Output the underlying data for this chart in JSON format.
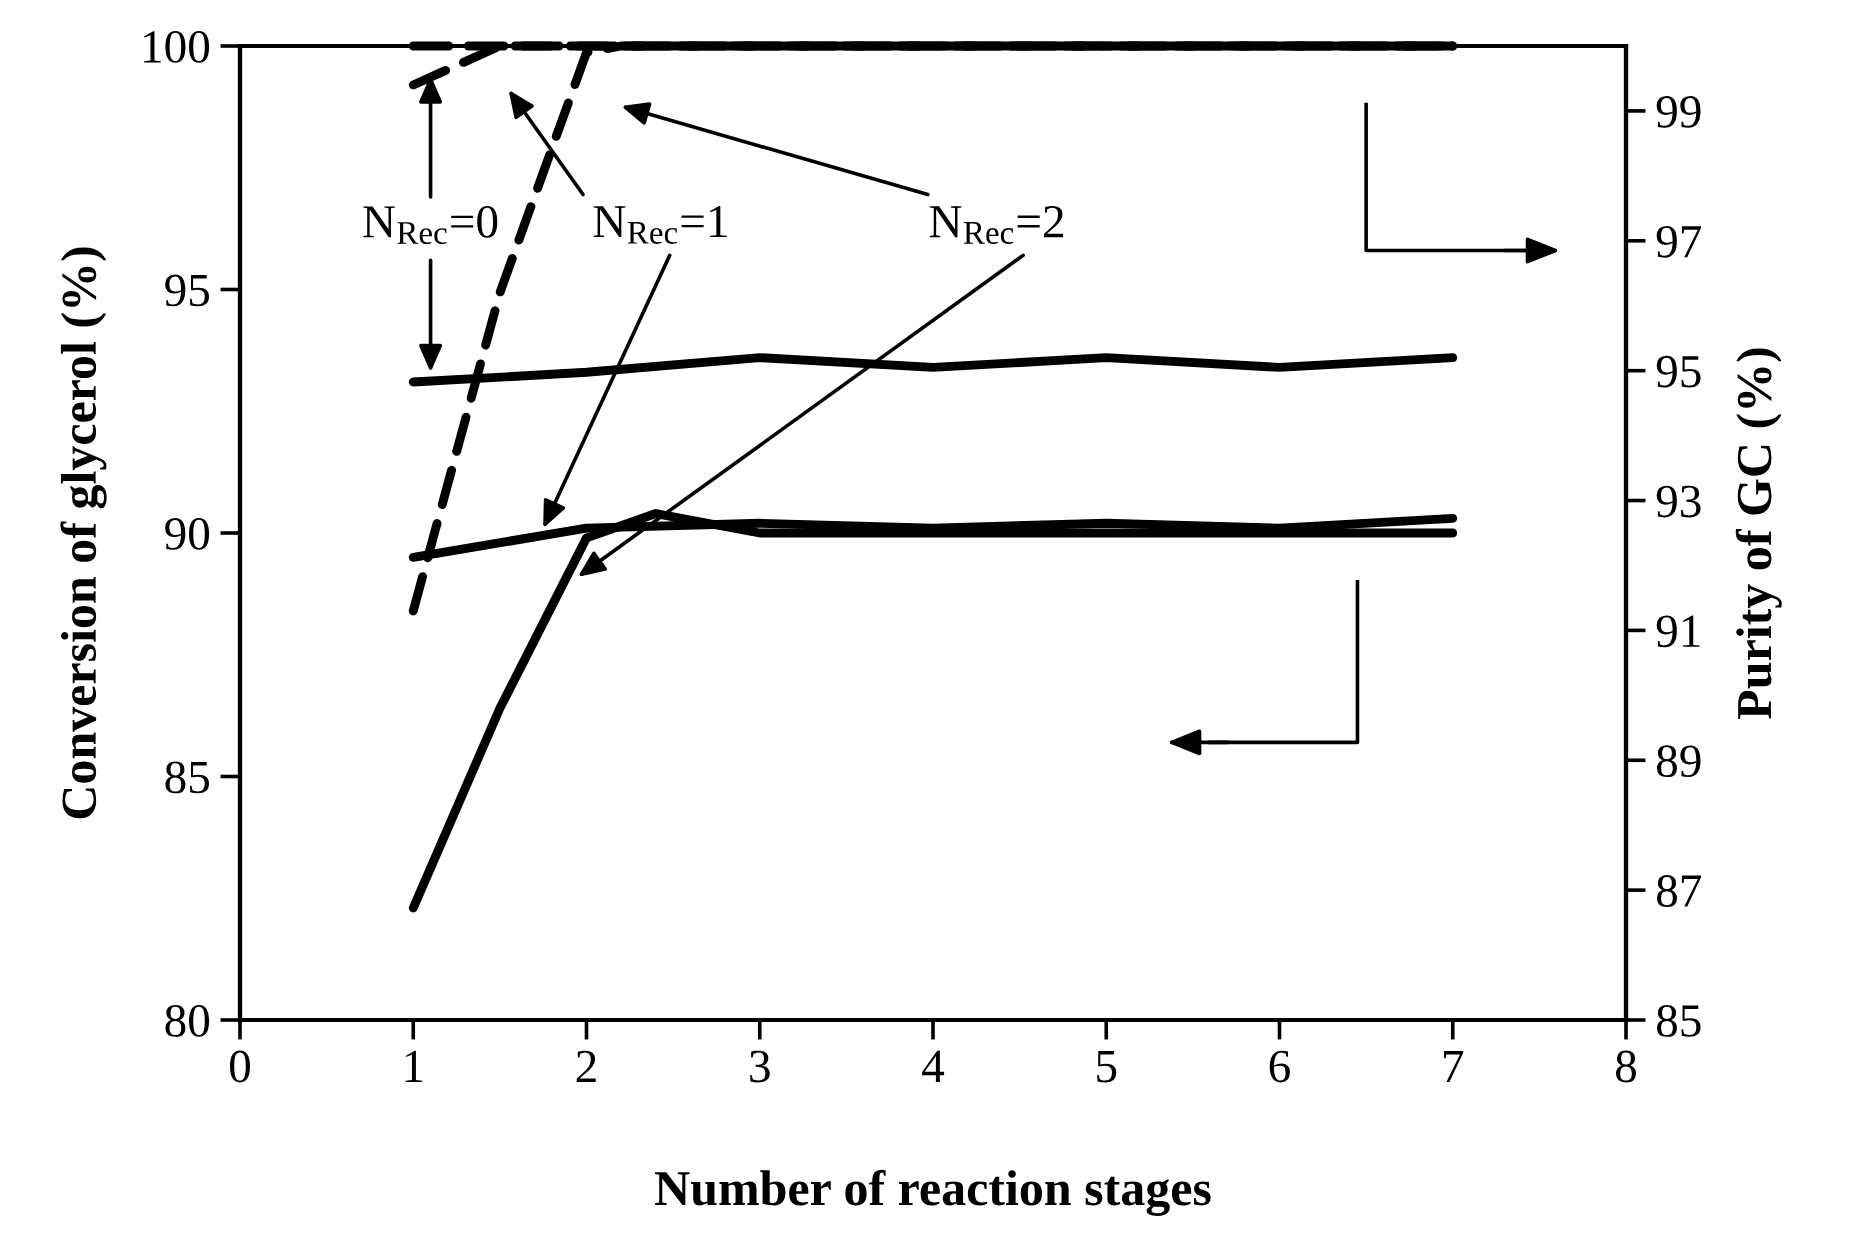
{
  "chart_data": {
    "type": "line",
    "xlabel": "Number of reaction stages",
    "ylabel": "Conversion of glycerol (%)",
    "y2label": "Purity of GC (%)",
    "x": [
      1,
      2,
      3,
      4,
      5,
      6,
      7
    ],
    "series": [
      {
        "color": "#000000",
        "values": [
          93.1,
          93.3,
          93.6,
          93.4,
          93.6,
          93.4,
          93.6
        ]
      },
      {
        "color": "#000000",
        "values": [
          89.5,
          90.1,
          90.2,
          90.1,
          90.2,
          90.1,
          90.3
        ]
      },
      {
        "color": "#000000",
        "x": [
          1,
          1.5,
          2,
          2.4,
          3,
          4,
          5,
          6,
          7
        ],
        "values": [
          82.3,
          86.4,
          89.9,
          90.4,
          90.0,
          90.0,
          90.0,
          90.0,
          90.0
        ]
      },
      {
        "color": "#000000",
        "axis": "y2",
        "line_style": "dashed",
        "values": [
          100,
          100,
          100,
          100,
          100,
          100,
          100
        ]
      },
      {
        "color": "#000000",
        "axis": "y2",
        "line_style": "dashed",
        "x": [
          1,
          1.5,
          2,
          3,
          4,
          5,
          6,
          7
        ],
        "values": [
          99.4,
          100,
          100,
          100,
          100,
          100,
          100,
          100
        ]
      },
      {
        "color": "#000000",
        "axis": "y2",
        "line_style": "dashed",
        "x": [
          1,
          1.5,
          2,
          2.2,
          3,
          4,
          5,
          6,
          7
        ],
        "values": [
          91.3,
          96.2,
          99.9,
          100,
          100,
          100,
          100,
          100,
          100
        ]
      }
    ],
    "xlim": [
      0,
      8
    ],
    "xticks": [
      0,
      1,
      2,
      3,
      4,
      5,
      6,
      7,
      8
    ],
    "ylim": [
      80,
      100
    ],
    "yticks": [
      80,
      85,
      90,
      95,
      100
    ],
    "y2lim": [
      85,
      100
    ],
    "y2ticks": [
      85,
      87,
      89,
      91,
      93,
      95,
      97,
      99
    ],
    "annotations": [
      {
        "text": "N$_{Rec}$=0",
        "x": 1.1,
        "y": 93.3
      },
      {
        "text": "N$_{Rec}$=1",
        "x": 1.75,
        "y": 90.1
      },
      {
        "text": "N$_{Rec}$=2",
        "x": 1.95,
        "y": 89.1
      }
    ],
    "grid": false,
    "legend": false,
    "marker": "none"
  }
}
